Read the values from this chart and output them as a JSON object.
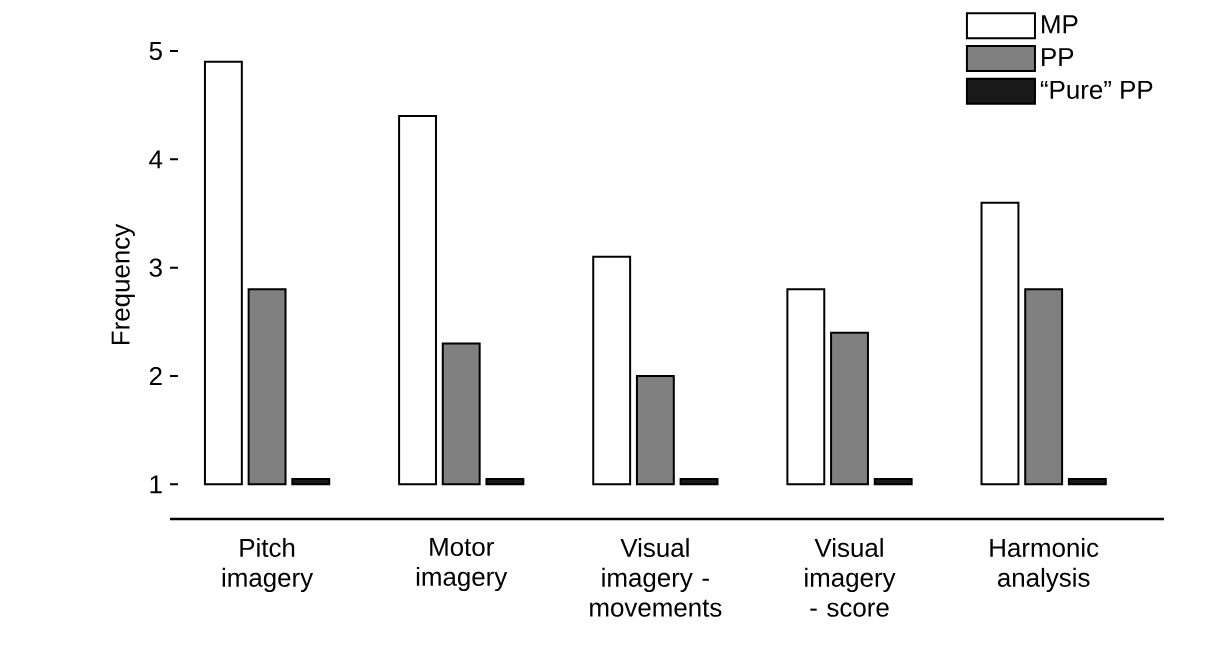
{
  "chart_data": {
    "type": "bar",
    "ylabel": "Frequency",
    "categories": [
      "Pitch imagery",
      "Motor imagery",
      "Visual imagery - movements",
      "Visual imagery - score",
      "Harmonic analysis"
    ],
    "series": [
      {
        "name": "MP",
        "color": "#ffffff",
        "base": [
          1,
          1,
          1,
          1,
          1
        ],
        "values": [
          3.9,
          3.4,
          2.1,
          1.8,
          2.6
        ]
      },
      {
        "name": "PP",
        "color": "#808080",
        "base": [
          1,
          1,
          1,
          1,
          1
        ],
        "values": [
          1.8,
          1.3,
          1.0,
          1.4,
          1.8
        ]
      },
      {
        "name": "“Pure” PP",
        "color": "#1a1a1a",
        "base": [
          1,
          1,
          1,
          1,
          1
        ],
        "values": [
          0.05,
          0.05,
          0.05,
          0.05,
          0.05
        ]
      }
    ],
    "ylim": [
      0.68,
      5
    ],
    "yticks": [
      1,
      2,
      3,
      4,
      5
    ],
    "legend": "top right",
    "grid": false
  }
}
